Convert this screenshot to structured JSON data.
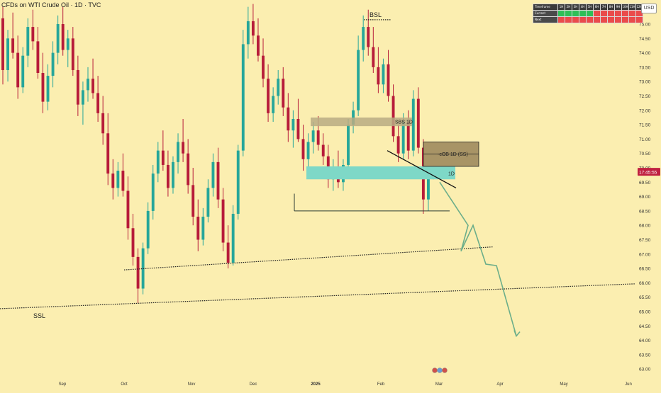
{
  "header": {
    "symbol_title": "CFDs on WTI Crude Oil · 1D · TVC",
    "currency": "USD"
  },
  "table": {
    "headers": [
      "Timeframe",
      "1H",
      "2H",
      "3H",
      "4H",
      "5H",
      "6H",
      "7H",
      "8H",
      "9H",
      "10H",
      "11H",
      "12H"
    ],
    "rows": [
      {
        "label": "Current",
        "states": [
          "green",
          "green",
          "green",
          "green",
          "green",
          "red",
          "red",
          "red",
          "red",
          "red",
          "red",
          "red"
        ]
      },
      {
        "label": "Next",
        "states": [
          "red",
          "red",
          "red",
          "red",
          "red",
          "red",
          "red",
          "red",
          "red",
          "red",
          "red",
          "red"
        ]
      }
    ]
  },
  "colors": {
    "background": "#fbeeb0",
    "up": "#26a69a",
    "down": "#b71c3a",
    "zone_teal": "#7ed8c7",
    "zone_tan": "#b9ab84",
    "zone_dark": "#a89466",
    "projection": "#6cae8a",
    "current_price_label": "#c02040"
  },
  "annotations": {
    "bsl": "BSL",
    "ssl": "SSL",
    "sbs": "SBS 1D",
    "cob": "-cOB 1D (SS)",
    "oned": "1D"
  },
  "chart_data": {
    "type": "candlestick",
    "title": "CFDs on WTI Crude Oil · 1D · TVC",
    "xlabel": "",
    "ylabel": "",
    "x_ticks": [
      "Sep",
      "Oct",
      "Nov",
      "Dec",
      "2025",
      "Feb",
      "Mar",
      "Apr",
      "May",
      "Jun"
    ],
    "y_ticks": [
      "75.00",
      "74.50",
      "74.00",
      "73.50",
      "73.00",
      "72.50",
      "72.00",
      "71.50",
      "71.00",
      "70.50",
      "70.00",
      "69.50",
      "69.00",
      "68.50",
      "68.00",
      "67.50",
      "67.00",
      "66.50",
      "66.00",
      "65.50",
      "65.00",
      "64.50",
      "64.00",
      "63.50",
      "63.00"
    ],
    "ylim": [
      62.8,
      75.8
    ],
    "current_price_label": "17:45:55",
    "grid": false,
    "candles": [
      {
        "o": 75.2,
        "h": 75.6,
        "l": 72.9,
        "c": 73.4
      },
      {
        "o": 73.4,
        "h": 74.8,
        "l": 73.0,
        "c": 74.5
      },
      {
        "o": 74.5,
        "h": 75.4,
        "l": 73.8,
        "c": 74.0
      },
      {
        "o": 74.0,
        "h": 74.6,
        "l": 72.4,
        "c": 72.8
      },
      {
        "o": 72.8,
        "h": 74.2,
        "l": 72.6,
        "c": 73.9
      },
      {
        "o": 73.9,
        "h": 75.2,
        "l": 73.5,
        "c": 74.9
      },
      {
        "o": 74.9,
        "h": 75.5,
        "l": 74.1,
        "c": 74.4
      },
      {
        "o": 74.4,
        "h": 74.9,
        "l": 73.1,
        "c": 73.3
      },
      {
        "o": 73.3,
        "h": 74.0,
        "l": 71.9,
        "c": 72.3
      },
      {
        "o": 72.3,
        "h": 73.6,
        "l": 72.0,
        "c": 73.2
      },
      {
        "o": 73.2,
        "h": 74.4,
        "l": 72.8,
        "c": 74.0
      },
      {
        "o": 74.0,
        "h": 75.3,
        "l": 73.6,
        "c": 75.0
      },
      {
        "o": 75.0,
        "h": 75.6,
        "l": 73.9,
        "c": 74.1
      },
      {
        "o": 74.1,
        "h": 74.8,
        "l": 73.5,
        "c": 74.5
      },
      {
        "o": 74.5,
        "h": 74.9,
        "l": 73.2,
        "c": 73.4
      },
      {
        "o": 73.4,
        "h": 73.9,
        "l": 71.8,
        "c": 72.2
      },
      {
        "o": 72.2,
        "h": 73.0,
        "l": 71.5,
        "c": 72.7
      },
      {
        "o": 72.7,
        "h": 73.5,
        "l": 72.3,
        "c": 73.1
      },
      {
        "o": 73.1,
        "h": 73.8,
        "l": 72.4,
        "c": 72.6
      },
      {
        "o": 72.6,
        "h": 73.2,
        "l": 71.6,
        "c": 71.9
      },
      {
        "o": 71.9,
        "h": 72.5,
        "l": 70.8,
        "c": 71.2
      },
      {
        "o": 71.2,
        "h": 71.9,
        "l": 69.4,
        "c": 69.8
      },
      {
        "o": 69.8,
        "h": 70.3,
        "l": 68.9,
        "c": 69.3
      },
      {
        "o": 69.3,
        "h": 70.2,
        "l": 69.0,
        "c": 69.9
      },
      {
        "o": 69.9,
        "h": 70.5,
        "l": 69.0,
        "c": 69.2
      },
      {
        "o": 69.2,
        "h": 69.7,
        "l": 67.5,
        "c": 67.9
      },
      {
        "o": 67.9,
        "h": 68.4,
        "l": 66.6,
        "c": 66.9
      },
      {
        "o": 66.9,
        "h": 67.2,
        "l": 65.3,
        "c": 65.8
      },
      {
        "o": 65.8,
        "h": 67.4,
        "l": 65.6,
        "c": 67.2
      },
      {
        "o": 67.2,
        "h": 68.8,
        "l": 67.0,
        "c": 68.5
      },
      {
        "o": 68.5,
        "h": 70.1,
        "l": 68.2,
        "c": 69.8
      },
      {
        "o": 69.8,
        "h": 70.9,
        "l": 69.5,
        "c": 70.6
      },
      {
        "o": 70.6,
        "h": 71.3,
        "l": 69.9,
        "c": 70.1
      },
      {
        "o": 70.1,
        "h": 70.6,
        "l": 69.0,
        "c": 69.3
      },
      {
        "o": 69.3,
        "h": 70.4,
        "l": 69.1,
        "c": 70.2
      },
      {
        "o": 70.2,
        "h": 71.2,
        "l": 69.8,
        "c": 70.9
      },
      {
        "o": 70.9,
        "h": 71.7,
        "l": 70.2,
        "c": 70.5
      },
      {
        "o": 70.5,
        "h": 71.0,
        "l": 69.1,
        "c": 69.4
      },
      {
        "o": 69.4,
        "h": 70.0,
        "l": 68.0,
        "c": 68.3
      },
      {
        "o": 68.3,
        "h": 68.9,
        "l": 67.1,
        "c": 67.5
      },
      {
        "o": 67.5,
        "h": 68.6,
        "l": 67.3,
        "c": 68.3
      },
      {
        "o": 68.3,
        "h": 69.6,
        "l": 68.1,
        "c": 69.3
      },
      {
        "o": 69.3,
        "h": 70.5,
        "l": 69.0,
        "c": 70.2
      },
      {
        "o": 70.2,
        "h": 70.7,
        "l": 68.6,
        "c": 68.9
      },
      {
        "o": 68.9,
        "h": 69.3,
        "l": 67.1,
        "c": 67.4
      },
      {
        "o": 67.4,
        "h": 68.0,
        "l": 66.5,
        "c": 66.7
      },
      {
        "o": 66.7,
        "h": 68.7,
        "l": 66.6,
        "c": 68.4
      },
      {
        "o": 68.4,
        "h": 70.8,
        "l": 68.2,
        "c": 70.6
      },
      {
        "o": 70.6,
        "h": 74.8,
        "l": 70.4,
        "c": 74.3
      },
      {
        "o": 74.3,
        "h": 75.6,
        "l": 73.8,
        "c": 75.1
      },
      {
        "o": 75.1,
        "h": 75.7,
        "l": 74.3,
        "c": 74.6
      },
      {
        "o": 74.6,
        "h": 75.2,
        "l": 73.7,
        "c": 73.9
      },
      {
        "o": 73.9,
        "h": 74.5,
        "l": 72.8,
        "c": 73.1
      },
      {
        "o": 73.1,
        "h": 73.6,
        "l": 71.6,
        "c": 71.9
      },
      {
        "o": 71.9,
        "h": 72.8,
        "l": 71.6,
        "c": 72.5
      },
      {
        "o": 72.5,
        "h": 73.4,
        "l": 72.2,
        "c": 73.1
      },
      {
        "o": 73.1,
        "h": 73.5,
        "l": 71.8,
        "c": 72.1
      },
      {
        "o": 72.1,
        "h": 72.6,
        "l": 70.9,
        "c": 71.3
      },
      {
        "o": 71.3,
        "h": 72.0,
        "l": 70.7,
        "c": 71.7
      },
      {
        "o": 71.7,
        "h": 72.4,
        "l": 70.9,
        "c": 71.0
      },
      {
        "o": 71.0,
        "h": 71.5,
        "l": 69.9,
        "c": 70.3
      },
      {
        "o": 70.3,
        "h": 71.2,
        "l": 70.0,
        "c": 70.9
      },
      {
        "o": 70.9,
        "h": 71.6,
        "l": 70.5,
        "c": 71.3
      },
      {
        "o": 71.3,
        "h": 71.8,
        "l": 70.6,
        "c": 70.8
      },
      {
        "o": 70.8,
        "h": 71.2,
        "l": 70.1,
        "c": 70.4
      },
      {
        "o": 70.4,
        "h": 70.8,
        "l": 69.3,
        "c": 69.6
      },
      {
        "o": 69.6,
        "h": 70.3,
        "l": 69.2,
        "c": 70.0
      },
      {
        "o": 70.0,
        "h": 70.6,
        "l": 69.3,
        "c": 69.5
      },
      {
        "o": 69.5,
        "h": 70.3,
        "l": 69.2,
        "c": 70.1
      },
      {
        "o": 70.1,
        "h": 71.7,
        "l": 69.9,
        "c": 71.5
      },
      {
        "o": 71.5,
        "h": 72.3,
        "l": 71.2,
        "c": 72.0
      },
      {
        "o": 72.0,
        "h": 74.6,
        "l": 71.8,
        "c": 74.1
      },
      {
        "o": 74.1,
        "h": 75.3,
        "l": 73.7,
        "c": 74.9
      },
      {
        "o": 74.9,
        "h": 75.5,
        "l": 73.9,
        "c": 74.2
      },
      {
        "o": 74.2,
        "h": 74.9,
        "l": 73.3,
        "c": 73.5
      },
      {
        "o": 73.5,
        "h": 74.2,
        "l": 72.6,
        "c": 72.9
      },
      {
        "o": 72.9,
        "h": 73.8,
        "l": 72.6,
        "c": 73.6
      },
      {
        "o": 73.6,
        "h": 74.1,
        "l": 72.3,
        "c": 72.5
      },
      {
        "o": 72.5,
        "h": 72.9,
        "l": 70.9,
        "c": 71.1
      },
      {
        "o": 71.1,
        "h": 71.5,
        "l": 70.2,
        "c": 70.5
      },
      {
        "o": 70.5,
        "h": 71.9,
        "l": 70.3,
        "c": 71.6
      },
      {
        "o": 71.6,
        "h": 72.0,
        "l": 70.3,
        "c": 70.6
      },
      {
        "o": 70.6,
        "h": 72.7,
        "l": 70.4,
        "c": 72.4
      },
      {
        "o": 72.4,
        "h": 72.8,
        "l": 70.5,
        "c": 70.7
      },
      {
        "o": 70.7,
        "h": 71.0,
        "l": 68.4,
        "c": 68.9
      },
      {
        "o": 68.9,
        "h": 70.0,
        "l": 68.5,
        "c": 69.9
      },
      {
        "o": 69.9,
        "h": 70.1,
        "l": 69.6,
        "c": 69.85
      }
    ],
    "levels": [
      {
        "name": "BSL",
        "y": 75.15
      },
      {
        "name": "SSL trendline",
        "y_start": 65.1,
        "y_end": 66.0
      },
      {
        "name": "support trendline",
        "y_start": 66.45,
        "y_end": 67.25
      },
      {
        "name": "range low",
        "y": 68.5
      }
    ],
    "zones": [
      {
        "name": "SBS 1D",
        "low": 71.45,
        "high": 71.75
      },
      {
        "name": "teal zone",
        "low": 69.6,
        "high": 70.05
      },
      {
        "name": "-cOB 1D (SS)",
        "low": 70.05,
        "high": 70.9
      }
    ],
    "projection_path": [
      69.5,
      68.0,
      67.1,
      68.0,
      66.65,
      65.85,
      66.6,
      65.0,
      64.15,
      64.5
    ]
  }
}
